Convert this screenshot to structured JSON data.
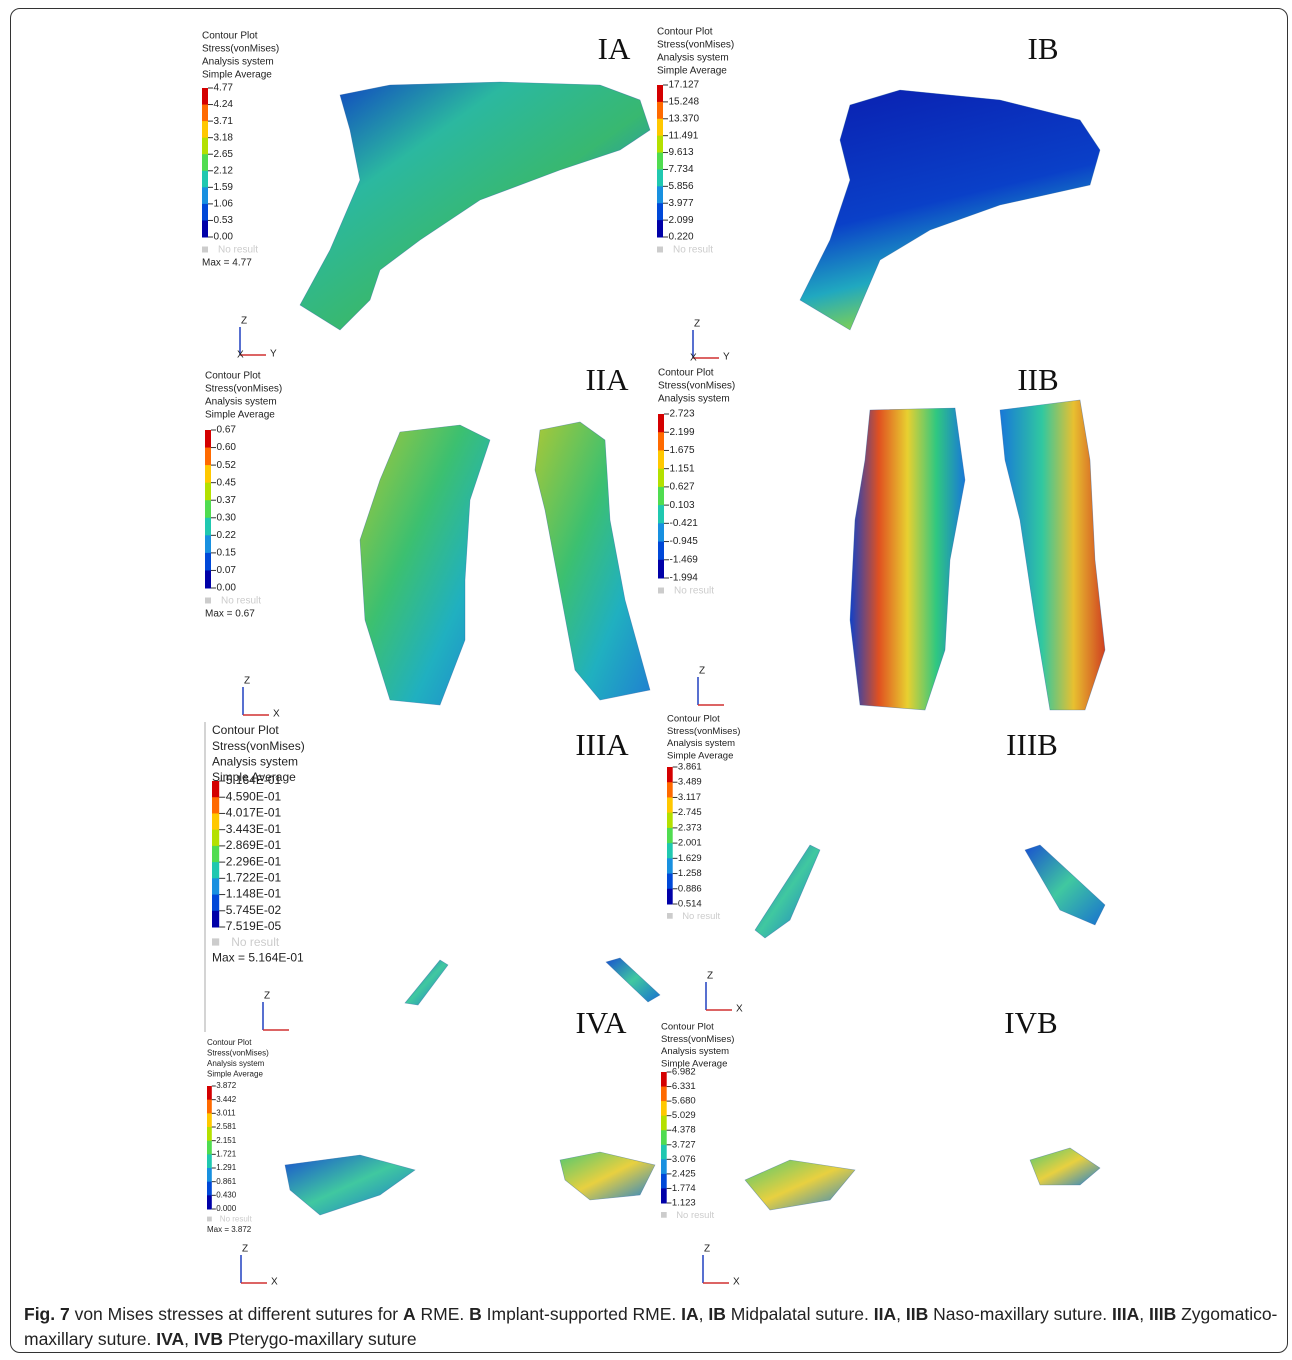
{
  "panels": [
    {
      "label": "IA",
      "legend": {
        "header": [
          "Contour Plot",
          "Stress(vonMises)",
          "Analysis system",
          "Simple Average"
        ],
        "scale": [
          "4.77",
          "4.24",
          "3.71",
          "3.18",
          "2.65",
          "2.12",
          "1.59",
          "1.06",
          "0.53",
          "0.00"
        ],
        "no_result": "No result",
        "max": "Max = 4.77"
      },
      "triad": {
        "top": "Z",
        "origin": "X",
        "right": "Y"
      }
    },
    {
      "label": "IB",
      "legend": {
        "header": [
          "Contour Plot",
          "Stress(vonMises)",
          "Analysis system",
          "Simple Average"
        ],
        "scale": [
          "17.127",
          "15.248",
          "13.370",
          "11.491",
          "9.613",
          "7.734",
          "5.856",
          "3.977",
          "2.099",
          "0.220"
        ],
        "no_result": "No result"
      },
      "triad": {
        "top": "Z",
        "origin": "X",
        "right": "Y"
      }
    },
    {
      "label": "IIA",
      "legend": {
        "header": [
          "Contour Plot",
          "Stress(vonMises)",
          "Analysis system",
          "Simple Average"
        ],
        "scale": [
          "0.67",
          "0.60",
          "0.52",
          "0.45",
          "0.37",
          "0.30",
          "0.22",
          "0.15",
          "0.07",
          "0.00"
        ],
        "no_result": "No result",
        "max": "Max = 0.67"
      },
      "triad": {
        "top": "Z",
        "right": "X"
      }
    },
    {
      "label": "IIB",
      "legend": {
        "header": [
          "Contour Plot",
          "Stress(vonMises)",
          "Analysis system"
        ],
        "scale": [
          "2.723",
          "2.199",
          "1.675",
          "1.151",
          "0.627",
          "0.103",
          "-0.421",
          "-0.945",
          "-1.469",
          "-1.994"
        ],
        "no_result": "No result"
      },
      "triad": {
        "top": "Z"
      }
    },
    {
      "label": "IIIA",
      "legend": {
        "header": [
          "Contour Plot",
          "Stress(vonMises)",
          "Analysis system",
          "Simple Average"
        ],
        "scale": [
          "5.164E-01",
          "4.590E-01",
          "4.017E-01",
          "3.443E-01",
          "2.869E-01",
          "2.296E-01",
          "1.722E-01",
          "1.148E-01",
          "5.745E-02",
          "7.519E-05"
        ],
        "no_result": "No result",
        "max": "Max = 5.164E-01"
      },
      "triad": {
        "top": "Z"
      }
    },
    {
      "label": "IIIB",
      "legend": {
        "header": [
          "Contour Plot",
          "Stress(vonMises)",
          "Analysis system",
          "Simple Average"
        ],
        "scale": [
          "3.861",
          "3.489",
          "3.117",
          "2.745",
          "2.373",
          "2.001",
          "1.629",
          "1.258",
          "0.886",
          "0.514"
        ],
        "no_result": "No result"
      },
      "triad": {
        "top": "Z",
        "right": "X"
      }
    },
    {
      "label": "IVA",
      "legend": {
        "header": [
          "Contour Plot",
          "Stress(vonMises)",
          "Analysis system",
          "Simple Average"
        ],
        "scale": [
          "3.872",
          "3.442",
          "3.011",
          "2.581",
          "2.151",
          "1.721",
          "1.291",
          "0.861",
          "0.430",
          "0.000"
        ],
        "no_result": "No result",
        "max": "Max = 3.872"
      },
      "triad": {
        "top": "Z",
        "right": "X"
      }
    },
    {
      "label": "IVB",
      "legend": {
        "header": [
          "Contour Plot",
          "Stress(vonMises)",
          "Analysis system",
          "Simple Average"
        ],
        "scale": [
          "6.982",
          "6.331",
          "5.680",
          "5.029",
          "4.378",
          "3.727",
          "3.076",
          "2.425",
          "1.774",
          "1.123"
        ],
        "no_result": "No result"
      },
      "triad": {
        "top": "Z",
        "right": "X"
      }
    }
  ],
  "caption": {
    "runs": [
      {
        "text": "Fig. 7",
        "bold": true
      },
      {
        "text": " von Mises stresses at different sutures for "
      },
      {
        "text": "A",
        "bold": true
      },
      {
        "text": " RME. "
      },
      {
        "text": "B",
        "bold": true
      },
      {
        "text": " Implant-supported RME. "
      },
      {
        "text": "IA",
        "bold": true
      },
      {
        "text": ", "
      },
      {
        "text": "IB",
        "bold": true
      },
      {
        "text": " Midpalatal suture. "
      },
      {
        "text": "IIA",
        "bold": true
      },
      {
        "text": ", "
      },
      {
        "text": "IIB",
        "bold": true
      },
      {
        "text": " Naso-maxillary suture. "
      },
      {
        "text": "IIIA",
        "bold": true
      },
      {
        "text": ", "
      },
      {
        "text": "IIIB",
        "bold": true
      },
      {
        "text": " Zygomatico-maxillary suture. "
      },
      {
        "text": "IVA",
        "bold": true
      },
      {
        "text": ", "
      },
      {
        "text": "IVB",
        "bold": true
      },
      {
        "text": " Pterygo-maxillary suture"
      }
    ]
  }
}
